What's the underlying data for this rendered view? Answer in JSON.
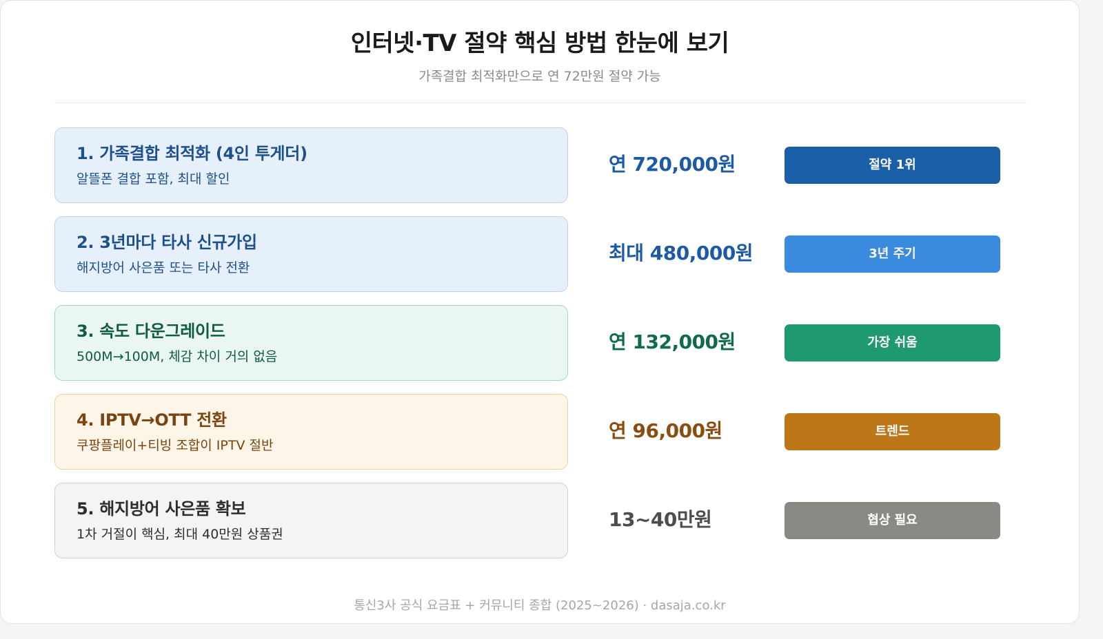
{
  "header": {
    "title": "인터넷·TV 절약 핵심 방법 한눈에 보기",
    "subtitle": "가족결합 최적화만으로 연 72만원 절약 가능"
  },
  "items": [
    {
      "title": "1. 가족결합 최적화 (4인 투게더)",
      "desc": "알뜰폰 결합 포함, 최대 할인",
      "amount": "연 720,000원",
      "badge": "절약 1위",
      "colors": {
        "card_bg": "#e6f0fb",
        "card_border": "#b9d3f0",
        "text": "#1d4f8c",
        "amount": "#1d5aa5",
        "badge": "#1a5fa8"
      }
    },
    {
      "title": "2. 3년마다 타사 신규가입",
      "desc": "해지방어 사은품 또는 타사 전환",
      "amount": "최대 480,000원",
      "badge": "3년 주기",
      "colors": {
        "card_bg": "#e6f0fb",
        "card_border": "#b9d3f0",
        "text": "#1d4f8c",
        "amount": "#1d5aa5",
        "badge": "#3a8ade"
      }
    },
    {
      "title": "3. 속도 다운그레이드",
      "desc": "500M→100M, 체감 차이 거의 없음",
      "amount": "연 132,000원",
      "badge": "가장 쉬움",
      "colors": {
        "card_bg": "#eaf7f1",
        "card_border": "#9fd9c0",
        "text": "#0f5b40",
        "amount": "#0f6b4a",
        "badge": "#1f9a6e"
      }
    },
    {
      "title": "4. IPTV→OTT 전환",
      "desc": "쿠팡플레이+티빙 조합이 IPTV 절반",
      "amount": "연 96,000원",
      "badge": "트렌드",
      "colors": {
        "card_bg": "#fdf5e8",
        "card_border": "#f0d29a",
        "text": "#7a4410",
        "amount": "#8a4d10",
        "badge": "#bd7718"
      }
    },
    {
      "title": "5. 해지방어 사은품 확보",
      "desc": "1차 거절이 핵심, 최대 40만원 상품권",
      "amount": "13~40만원",
      "badge": "협상 필요",
      "colors": {
        "card_bg": "#f4f4f2",
        "card_border": "#cfcfcb",
        "text": "#2d2d2d",
        "amount": "#4d4d4d",
        "badge": "#8a8a84"
      }
    }
  ],
  "footer": {
    "source": "통신3사 공식 요금표 + 커뮤니티 종합 (2025~2026) · dasaja.co.kr"
  }
}
